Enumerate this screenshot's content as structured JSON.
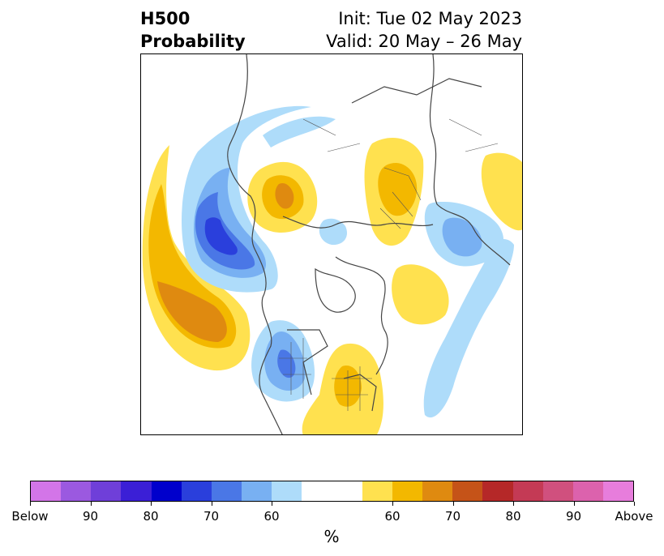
{
  "title": {
    "variable": "H500",
    "subtitle": "Probability",
    "init": "Init: Tue 02 May 2023",
    "valid": "Valid: 20 May – 26 May"
  },
  "colorbar": {
    "unit": "%",
    "tick_labels": [
      "Below",
      "90",
      "80",
      "70",
      "60",
      "60",
      "70",
      "80",
      "90",
      "Above"
    ],
    "colors": [
      "#d375e8",
      "#9b59e0",
      "#6f3fd9",
      "#3b1fd6",
      "#0000cc",
      "#2a3fdc",
      "#4a77e6",
      "#78b0f2",
      "#aedcfa",
      "#ffffff",
      "#ffffff",
      "#ffe14f",
      "#f3b800",
      "#df8a10",
      "#c55318",
      "#b52828",
      "#c43a55",
      "#d0507e",
      "#dc62ad",
      "#e77ddc"
    ]
  },
  "map": {
    "projection": "polar stereographic, Northern Hemisphere",
    "shading_colors": {
      "below_60": "#aedcfa",
      "below_70": "#78b0f2",
      "below_80": "#4a77e6",
      "below_90": "#2a3fdc",
      "above_60": "#ffe14f",
      "above_70": "#f3b800",
      "above_80": "#df8a10"
    }
  }
}
